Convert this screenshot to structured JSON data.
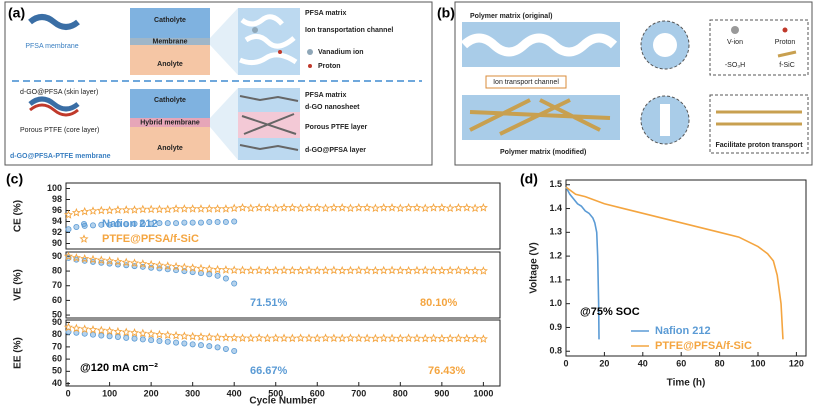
{
  "panel_labels": [
    "(a)",
    "(b)",
    "(c)",
    "(d)"
  ],
  "diagram_a": {
    "pfsa_membrane": "PFSA membrane",
    "catholyte_top": "Catholyte",
    "membrane": "Membrane",
    "anolyte_top": "Anolyte",
    "pfsa_matrix_top": "PFSA matrix",
    "ion_channel": "Ion transportation channel",
    "vanadium_ion": "Vanadium ion",
    "proton": "Proton",
    "skin_layer": "d-GO@PFSA (skin layer)",
    "core_layer": "Porous PTFE (core layer)",
    "hybrid_name": "d-GO@PFSA-PTFE membrane",
    "catholyte_bottom": "Catholyte",
    "hybrid_membrane": "Hybrid membrane",
    "anolyte_bottom": "Anolyte",
    "pfsa_matrix_bottom": "PFSA matrix",
    "dgo_nanosheet": "d-GO nanosheet",
    "ptfe_layer": "Porous PTFE layer",
    "dgo_layer": "d-GO@PFSA layer"
  },
  "diagram_b": {
    "original": "Polymer matrix (original)",
    "v_ion": "V-ion",
    "proton": "Proton",
    "so3h": "-SO₃H",
    "fsic": "f-SiC",
    "channel": "Ion transport channel",
    "modified": "Polymer matrix (modified)",
    "facilitate": "Facilitate proton transport"
  },
  "chart_data": [
    {
      "type": "scatter",
      "ylabel": "CE (%)",
      "xlim": [
        -5,
        1040
      ],
      "ylim": [
        89,
        101
      ],
      "yticks": [
        90,
        92,
        94,
        96,
        98,
        100
      ],
      "legend": "lower left",
      "annotations": [],
      "series": [
        {
          "name": "Nafion 212",
          "color": "#5b9bd5",
          "marker": "circle",
          "x": [
            1,
            20,
            40,
            60,
            80,
            100,
            120,
            140,
            160,
            180,
            200,
            220,
            240,
            260,
            280,
            300,
            320,
            340,
            360,
            380,
            400
          ],
          "values": [
            92.6,
            93.0,
            93.2,
            93.3,
            93.4,
            93.4,
            93.5,
            93.5,
            93.6,
            93.6,
            93.6,
            93.7,
            93.7,
            93.7,
            93.8,
            93.8,
            93.8,
            93.9,
            93.9,
            93.9,
            94.0
          ]
        },
        {
          "name": "PTFE@PFSA/f-SiC",
          "color": "#f4a540",
          "marker": "star",
          "x": [
            1,
            20,
            40,
            60,
            80,
            100,
            120,
            140,
            160,
            180,
            200,
            220,
            240,
            260,
            280,
            300,
            320,
            340,
            360,
            380,
            400,
            420,
            440,
            460,
            480,
            500,
            520,
            540,
            560,
            580,
            600,
            620,
            640,
            660,
            680,
            700,
            720,
            740,
            760,
            780,
            800,
            820,
            840,
            860,
            880,
            900,
            920,
            940,
            960,
            980,
            1000
          ],
          "values": [
            95.2,
            95.6,
            95.8,
            95.9,
            96.0,
            96.0,
            96.1,
            96.1,
            96.1,
            96.2,
            96.2,
            96.2,
            96.2,
            96.3,
            96.3,
            96.3,
            96.3,
            96.3,
            96.3,
            96.3,
            96.4,
            96.5,
            96.4,
            96.5,
            96.5,
            96.4,
            96.5,
            96.5,
            96.4,
            96.5,
            96.5,
            96.4,
            96.5,
            96.5,
            96.4,
            96.5,
            96.5,
            96.4,
            96.5,
            96.5,
            96.4,
            96.5,
            96.5,
            96.4,
            96.5,
            96.5,
            96.4,
            96.5,
            96.5,
            96.4,
            96.5
          ]
        }
      ]
    },
    {
      "type": "scatter",
      "ylabel": "VE (%)",
      "xlim": [
        -5,
        1040
      ],
      "ylim": [
        48,
        93
      ],
      "yticks": [
        50,
        60,
        70,
        80,
        90
      ],
      "annotations": [
        {
          "text": "71.51%",
          "color": "#5b9bd5"
        },
        {
          "text": "80.10%",
          "color": "#f4a540"
        }
      ],
      "series": [
        {
          "name": "Nafion 212",
          "color": "#5b9bd5",
          "marker": "circle",
          "x": [
            1,
            20,
            40,
            60,
            80,
            100,
            120,
            140,
            160,
            180,
            200,
            220,
            240,
            260,
            280,
            300,
            320,
            340,
            360,
            380,
            400
          ],
          "values": [
            89.0,
            87.8,
            87.0,
            86.3,
            85.7,
            85.1,
            84.5,
            84.0,
            83.4,
            82.9,
            82.3,
            81.8,
            81.2,
            80.6,
            80.0,
            79.3,
            78.6,
            77.8,
            76.8,
            74.9,
            71.51
          ]
        },
        {
          "name": "PTFE@PFSA/f-SiC",
          "color": "#f4a540",
          "marker": "star",
          "x": [
            1,
            20,
            40,
            60,
            80,
            100,
            120,
            140,
            160,
            180,
            200,
            220,
            240,
            260,
            280,
            300,
            320,
            340,
            360,
            380,
            400,
            420,
            440,
            460,
            480,
            500,
            520,
            540,
            560,
            580,
            600,
            620,
            640,
            660,
            680,
            700,
            720,
            740,
            760,
            780,
            800,
            820,
            840,
            860,
            880,
            900,
            920,
            940,
            960,
            980,
            1000
          ],
          "values": [
            90.0,
            89.0,
            88.4,
            87.9,
            87.4,
            86.9,
            86.4,
            85.9,
            85.4,
            84.9,
            84.4,
            83.9,
            83.4,
            83.0,
            82.5,
            82.1,
            81.7,
            81.3,
            81.0,
            80.8,
            80.6,
            80.5,
            80.4,
            80.5,
            80.3,
            80.4,
            80.5,
            80.4,
            80.3,
            80.5,
            80.4,
            80.4,
            80.5,
            80.3,
            80.4,
            80.5,
            80.4,
            80.3,
            80.4,
            80.5,
            80.4,
            80.3,
            80.4,
            80.5,
            80.4,
            80.3,
            80.4,
            80.5,
            80.3,
            80.2,
            80.1
          ]
        }
      ]
    },
    {
      "type": "scatter",
      "ylabel": "EE (%)",
      "xlabel": "Cycle Number",
      "xlim": [
        -5,
        1040
      ],
      "xticks": [
        0,
        100,
        200,
        300,
        400,
        500,
        600,
        700,
        800,
        900,
        1000
      ],
      "ylim": [
        38,
        92
      ],
      "yticks": [
        40,
        50,
        60,
        70,
        80,
        90
      ],
      "annotations": [
        {
          "text": "66.67%",
          "color": "#5b9bd5"
        },
        {
          "text": "76.43%",
          "color": "#f4a540"
        },
        {
          "text": "@120 mA cm⁻²",
          "color": "#000000"
        }
      ],
      "series": [
        {
          "name": "Nafion 212",
          "color": "#5b9bd5",
          "marker": "circle",
          "x": [
            1,
            20,
            40,
            60,
            80,
            100,
            120,
            140,
            160,
            180,
            200,
            220,
            240,
            260,
            280,
            300,
            320,
            340,
            360,
            380,
            400
          ],
          "values": [
            82.4,
            81.6,
            80.8,
            80.0,
            79.3,
            78.7,
            78.1,
            77.4,
            76.8,
            76.1,
            75.5,
            74.8,
            74.2,
            73.5,
            72.8,
            72.1,
            71.4,
            70.6,
            69.6,
            68.3,
            66.67
          ]
        },
        {
          "name": "PTFE@PFSA/f-SiC",
          "color": "#f4a540",
          "marker": "star",
          "x": [
            1,
            20,
            40,
            60,
            80,
            100,
            120,
            140,
            160,
            180,
            200,
            220,
            240,
            260,
            280,
            300,
            320,
            340,
            360,
            380,
            400,
            420,
            440,
            460,
            480,
            500,
            520,
            540,
            560,
            580,
            600,
            620,
            640,
            660,
            680,
            700,
            720,
            740,
            760,
            780,
            800,
            820,
            840,
            860,
            880,
            900,
            920,
            940,
            960,
            980,
            1000
          ],
          "values": [
            86.0,
            85.1,
            84.5,
            84.0,
            83.5,
            83.0,
            82.5,
            82.0,
            81.5,
            81.0,
            80.5,
            80.0,
            79.6,
            79.2,
            78.8,
            78.5,
            78.2,
            78.0,
            77.8,
            77.6,
            77.4,
            77.2,
            77.1,
            77.3,
            77.0,
            77.2,
            77.1,
            77.0,
            77.2,
            77.1,
            77.0,
            77.2,
            77.1,
            77.0,
            77.2,
            77.1,
            77.0,
            76.9,
            77.1,
            77.0,
            76.9,
            77.1,
            77.0,
            76.9,
            77.0,
            76.8,
            76.9,
            77.0,
            76.8,
            76.7,
            76.43
          ]
        }
      ]
    },
    {
      "type": "line",
      "xlabel": "Time (h)",
      "ylabel": "Voltage (V)",
      "xlim": [
        0,
        125
      ],
      "xticks": [
        0,
        20,
        40,
        60,
        80,
        100,
        120
      ],
      "ylim": [
        0.78,
        1.52
      ],
      "yticks": [
        0.8,
        0.9,
        {
          "value": 1,
          "label": "1.0"
        },
        1.1,
        1.2,
        1.3,
        1.4,
        1.5
      ],
      "legend": "lower right",
      "annotations": [
        {
          "text": "@75% SOC",
          "color": "#000000"
        }
      ],
      "series": [
        {
          "name": "Nafion 212",
          "color": "#5b9bd5",
          "x": [
            0,
            2,
            4,
            6,
            8,
            10,
            12,
            14,
            15,
            16,
            16.5,
            17,
            17.2
          ],
          "values": [
            1.49,
            1.46,
            1.44,
            1.42,
            1.41,
            1.39,
            1.38,
            1.36,
            1.34,
            1.3,
            1.2,
            1.0,
            0.85
          ]
        },
        {
          "name": "PTFE@PFSA/f-SiC",
          "color": "#f4a540",
          "x": [
            0,
            5,
            10,
            20,
            30,
            40,
            50,
            60,
            70,
            80,
            90,
            100,
            105,
            108,
            110,
            112,
            113
          ],
          "values": [
            1.49,
            1.46,
            1.45,
            1.42,
            1.4,
            1.38,
            1.36,
            1.34,
            1.32,
            1.3,
            1.28,
            1.24,
            1.21,
            1.18,
            1.12,
            1.0,
            0.85
          ]
        }
      ]
    }
  ]
}
